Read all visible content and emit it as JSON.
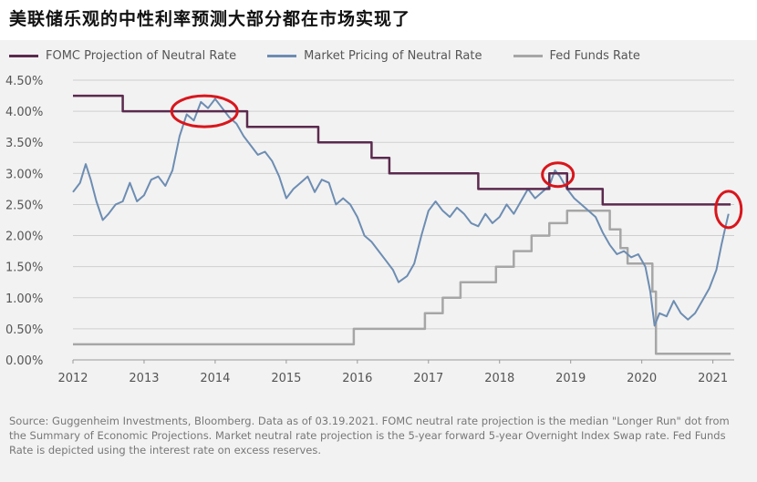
{
  "title": "美联储乐观的中性利率预测大部分都在市场实现了",
  "source": "Source: Guggenheim Investments, Bloomberg. Data as of 03.19.2021. FOMC neutral rate projection is the median \"Longer Run\" dot from the Summary of Economic Projections. Market neutral rate projection is the 5-year forward 5-year Overnight Index Swap rate. Fed Funds Rate is depicted using the interest rate on excess reserves.",
  "colors": {
    "fomc": "#5b2a4e",
    "market": "#6d8db2",
    "fed": "#a6a6a6",
    "highlight": "#d9161c",
    "grid": "#cfcfcf",
    "background": "#f2f2f2"
  },
  "chart_data": {
    "type": "line",
    "xlim": [
      2012,
      2021.3
    ],
    "ylim": [
      0,
      4.5
    ],
    "x_ticks": [
      "2012",
      "2013",
      "2014",
      "2015",
      "2016",
      "2017",
      "2018",
      "2019",
      "2020",
      "2021"
    ],
    "y_ticks": [
      "4.50%",
      "4.00%",
      "3.50%",
      "3.00%",
      "2.50%",
      "2.00%",
      "1.50%",
      "1.00%",
      "0.50%",
      "0.00%"
    ],
    "grid": true,
    "legend_position": "top",
    "series": [
      {
        "name": "FOMC Projection of Neutral Rate",
        "style": "step",
        "points": [
          [
            2012.0,
            4.25
          ],
          [
            2012.7,
            4.25
          ],
          [
            2012.7,
            4.0
          ],
          [
            2014.45,
            4.0
          ],
          [
            2014.45,
            3.75
          ],
          [
            2015.45,
            3.75
          ],
          [
            2015.45,
            3.5
          ],
          [
            2016.2,
            3.5
          ],
          [
            2016.2,
            3.25
          ],
          [
            2016.45,
            3.25
          ],
          [
            2016.45,
            3.0
          ],
          [
            2016.95,
            3.0
          ],
          [
            2016.95,
            3.0
          ],
          [
            2017.7,
            3.0
          ],
          [
            2017.7,
            2.75
          ],
          [
            2018.7,
            2.75
          ],
          [
            2018.7,
            3.0
          ],
          [
            2018.95,
            3.0
          ],
          [
            2018.95,
            2.75
          ],
          [
            2019.45,
            2.75
          ],
          [
            2019.45,
            2.5
          ],
          [
            2021.25,
            2.5
          ]
        ]
      },
      {
        "name": "Market Pricing of Neutral Rate",
        "style": "line",
        "points": [
          [
            2012.0,
            2.7
          ],
          [
            2012.1,
            2.85
          ],
          [
            2012.18,
            3.15
          ],
          [
            2012.25,
            2.9
          ],
          [
            2012.33,
            2.55
          ],
          [
            2012.42,
            2.25
          ],
          [
            2012.5,
            2.35
          ],
          [
            2012.6,
            2.5
          ],
          [
            2012.7,
            2.55
          ],
          [
            2012.8,
            2.85
          ],
          [
            2012.9,
            2.55
          ],
          [
            2013.0,
            2.65
          ],
          [
            2013.1,
            2.9
          ],
          [
            2013.2,
            2.95
          ],
          [
            2013.3,
            2.8
          ],
          [
            2013.4,
            3.05
          ],
          [
            2013.5,
            3.6
          ],
          [
            2013.6,
            3.95
          ],
          [
            2013.7,
            3.85
          ],
          [
            2013.8,
            4.15
          ],
          [
            2013.9,
            4.05
          ],
          [
            2014.0,
            4.2
          ],
          [
            2014.1,
            4.05
          ],
          [
            2014.2,
            3.9
          ],
          [
            2014.3,
            3.8
          ],
          [
            2014.4,
            3.6
          ],
          [
            2014.5,
            3.45
          ],
          [
            2014.6,
            3.3
          ],
          [
            2014.7,
            3.35
          ],
          [
            2014.8,
            3.2
          ],
          [
            2014.9,
            2.95
          ],
          [
            2015.0,
            2.6
          ],
          [
            2015.1,
            2.75
          ],
          [
            2015.2,
            2.85
          ],
          [
            2015.3,
            2.95
          ],
          [
            2015.4,
            2.7
          ],
          [
            2015.5,
            2.9
          ],
          [
            2015.6,
            2.85
          ],
          [
            2015.7,
            2.5
          ],
          [
            2015.8,
            2.6
          ],
          [
            2015.9,
            2.5
          ],
          [
            2016.0,
            2.3
          ],
          [
            2016.1,
            2.0
          ],
          [
            2016.2,
            1.9
          ],
          [
            2016.3,
            1.75
          ],
          [
            2016.4,
            1.6
          ],
          [
            2016.5,
            1.45
          ],
          [
            2016.58,
            1.25
          ],
          [
            2016.7,
            1.35
          ],
          [
            2016.8,
            1.55
          ],
          [
            2016.9,
            2.0
          ],
          [
            2017.0,
            2.4
          ],
          [
            2017.1,
            2.55
          ],
          [
            2017.2,
            2.4
          ],
          [
            2017.3,
            2.3
          ],
          [
            2017.4,
            2.45
          ],
          [
            2017.5,
            2.35
          ],
          [
            2017.6,
            2.2
          ],
          [
            2017.7,
            2.15
          ],
          [
            2017.8,
            2.35
          ],
          [
            2017.9,
            2.2
          ],
          [
            2018.0,
            2.3
          ],
          [
            2018.1,
            2.5
          ],
          [
            2018.2,
            2.35
          ],
          [
            2018.3,
            2.55
          ],
          [
            2018.4,
            2.75
          ],
          [
            2018.5,
            2.6
          ],
          [
            2018.6,
            2.7
          ],
          [
            2018.7,
            2.8
          ],
          [
            2018.78,
            3.05
          ],
          [
            2018.85,
            2.95
          ],
          [
            2018.95,
            2.75
          ],
          [
            2019.05,
            2.6
          ],
          [
            2019.15,
            2.5
          ],
          [
            2019.25,
            2.4
          ],
          [
            2019.35,
            2.3
          ],
          [
            2019.45,
            2.05
          ],
          [
            2019.55,
            1.85
          ],
          [
            2019.65,
            1.7
          ],
          [
            2019.75,
            1.75
          ],
          [
            2019.85,
            1.65
          ],
          [
            2019.95,
            1.7
          ],
          [
            2020.05,
            1.5
          ],
          [
            2020.12,
            1.1
          ],
          [
            2020.18,
            0.55
          ],
          [
            2020.25,
            0.75
          ],
          [
            2020.35,
            0.7
          ],
          [
            2020.45,
            0.95
          ],
          [
            2020.55,
            0.75
          ],
          [
            2020.65,
            0.65
          ],
          [
            2020.75,
            0.75
          ],
          [
            2020.85,
            0.95
          ],
          [
            2020.95,
            1.15
          ],
          [
            2021.05,
            1.45
          ],
          [
            2021.12,
            1.85
          ],
          [
            2021.18,
            2.15
          ],
          [
            2021.22,
            2.35
          ]
        ]
      },
      {
        "name": "Fed Funds Rate",
        "style": "step",
        "points": [
          [
            2012.0,
            0.25
          ],
          [
            2015.95,
            0.25
          ],
          [
            2015.95,
            0.5
          ],
          [
            2016.95,
            0.5
          ],
          [
            2016.95,
            0.75
          ],
          [
            2017.2,
            0.75
          ],
          [
            2017.2,
            1.0
          ],
          [
            2017.45,
            1.0
          ],
          [
            2017.45,
            1.25
          ],
          [
            2017.95,
            1.25
          ],
          [
            2017.95,
            1.5
          ],
          [
            2018.2,
            1.5
          ],
          [
            2018.2,
            1.75
          ],
          [
            2018.45,
            1.75
          ],
          [
            2018.45,
            2.0
          ],
          [
            2018.7,
            2.0
          ],
          [
            2018.7,
            2.2
          ],
          [
            2018.95,
            2.2
          ],
          [
            2018.95,
            2.4
          ],
          [
            2019.55,
            2.4
          ],
          [
            2019.55,
            2.1
          ],
          [
            2019.7,
            2.1
          ],
          [
            2019.7,
            1.8
          ],
          [
            2019.8,
            1.8
          ],
          [
            2019.8,
            1.55
          ],
          [
            2020.15,
            1.55
          ],
          [
            2020.15,
            1.1
          ],
          [
            2020.2,
            1.1
          ],
          [
            2020.2,
            0.1
          ],
          [
            2021.25,
            0.1
          ]
        ]
      }
    ],
    "highlights": [
      {
        "x": 2013.85,
        "y": 4.0
      },
      {
        "x": 2018.82,
        "y": 2.98
      },
      {
        "x": 2021.22,
        "y": 2.42
      }
    ]
  }
}
